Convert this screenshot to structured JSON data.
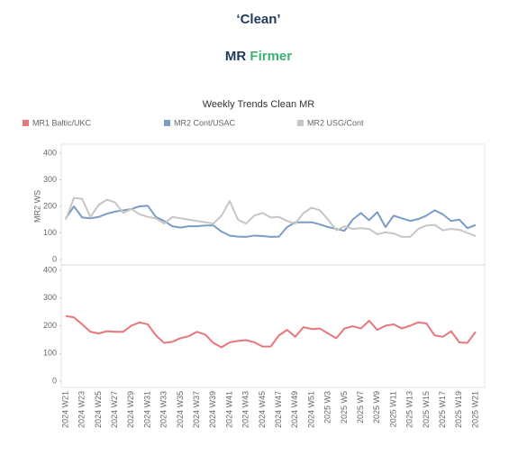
{
  "header": {
    "title": "‘Clean’",
    "subtitle": [
      "MR",
      "Firmer"
    ]
  },
  "chart_data": {
    "type": "line",
    "title": "Weekly Trends Clean MR",
    "categories": [
      "2024 W21",
      null,
      "2024 W23",
      null,
      "2024 W25",
      null,
      "2024 W27",
      null,
      "2024 W29",
      null,
      "2024 W31",
      null,
      "2024 W33",
      null,
      "2024 W35",
      null,
      "2024 W37",
      null,
      "2024 W39",
      null,
      "2024 W41",
      null,
      "2024 W43",
      null,
      "2024 W45",
      null,
      "2024 W47",
      null,
      "2024 W49",
      null,
      "2024 W51",
      null,
      "2025 W3",
      null,
      "2025 W5",
      null,
      "2025 W7",
      null,
      "2025 W9",
      null,
      "2025 W11",
      null,
      "2025 W13",
      null,
      "2025 W15",
      null,
      "2025 W17",
      null,
      "2025 W19",
      null,
      "2025 W21"
    ],
    "legend": "top",
    "grid": false,
    "panels": [
      {
        "ylabel": "MR2 WS",
        "ylim": [
          0,
          400
        ],
        "yticks": [
          0,
          100,
          200,
          300,
          400
        ]
      },
      {
        "ylim": [
          0,
          400
        ],
        "yticks": [
          0,
          100,
          200,
          300,
          400
        ]
      }
    ],
    "series": [
      {
        "name": "MR1 Baltic/UKC",
        "color": "#e8767b",
        "panel": 1,
        "values": [
          235,
          230,
          205,
          178,
          172,
          180,
          178,
          178,
          200,
          212,
          205,
          165,
          138,
          142,
          155,
          162,
          178,
          168,
          138,
          122,
          140,
          145,
          148,
          140,
          125,
          125,
          165,
          185,
          160,
          195,
          188,
          190,
          172,
          155,
          190,
          198,
          190,
          218,
          185,
          200,
          205,
          190,
          200,
          212,
          208,
          165,
          160,
          180,
          140,
          138,
          178
        ]
      },
      {
        "name": "MR2 Cont/USAC",
        "color": "#7a9cc6",
        "panel": 0,
        "values": [
          155,
          200,
          158,
          155,
          160,
          172,
          180,
          185,
          190,
          200,
          202,
          160,
          145,
          125,
          120,
          125,
          125,
          128,
          128,
          105,
          90,
          86,
          85,
          90,
          88,
          85,
          86,
          122,
          140,
          140,
          140,
          132,
          122,
          115,
          108,
          150,
          175,
          148,
          178,
          122,
          165,
          155,
          145,
          152,
          165,
          185,
          170,
          145,
          150,
          118,
          130
        ]
      },
      {
        "name": "MR2 USG/Cont",
        "color": "#c9c5c0",
        "panel": 0,
        "values": [
          150,
          232,
          228,
          160,
          205,
          225,
          215,
          175,
          190,
          170,
          160,
          155,
          135,
          160,
          155,
          150,
          145,
          140,
          135,
          165,
          220,
          150,
          135,
          165,
          175,
          158,
          160,
          145,
          135,
          175,
          195,
          185,
          150,
          110,
          125,
          115,
          118,
          115,
          95,
          102,
          98,
          85,
          85,
          115,
          128,
          130,
          110,
          115,
          112,
          100,
          88
        ]
      }
    ]
  }
}
